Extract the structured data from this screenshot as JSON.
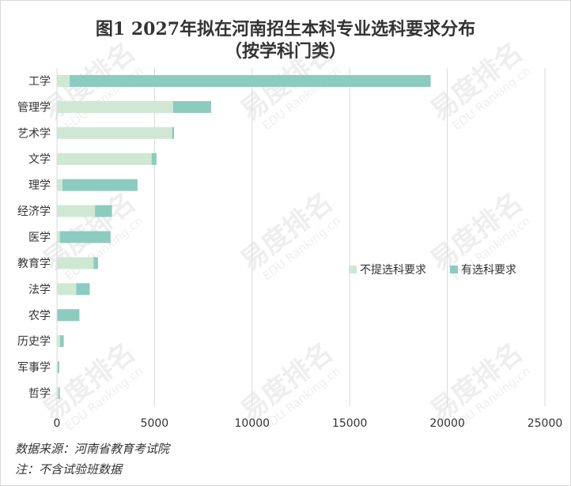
{
  "chart_data": {
    "type": "bar",
    "orientation": "horizontal",
    "stacked": true,
    "title": "图1 2027年拟在河南招生本科专业选科要求分布",
    "subtitle": "（按学科门类）",
    "categories": [
      "工学",
      "管理学",
      "艺术学",
      "文学",
      "理学",
      "经济学",
      "医学",
      "教育学",
      "法学",
      "农学",
      "历史学",
      "军事学",
      "哲学"
    ],
    "series": [
      {
        "name": "不提选科要求",
        "color": "#cfe8d4",
        "values": [
          650,
          5950,
          5900,
          4850,
          280,
          1950,
          150,
          1870,
          990,
          20,
          160,
          40,
          70
        ]
      },
      {
        "name": "有选科要求",
        "color": "#8ccbc0",
        "values": [
          18500,
          1950,
          100,
          250,
          3850,
          870,
          2600,
          240,
          690,
          1130,
          190,
          80,
          80
        ]
      }
    ],
    "xlim": [
      0,
      25000
    ],
    "xticks": [
      "0",
      "5000",
      "10000",
      "15000",
      "20000",
      "25000"
    ],
    "grid": true,
    "legend_position": "right"
  },
  "notes": {
    "source": "数据来源：河南省教育考试院",
    "remark": "注：不含试验班数据"
  },
  "watermark": {
    "brand": "易度排名",
    "brand_en": "EDU Ranking.cn"
  }
}
